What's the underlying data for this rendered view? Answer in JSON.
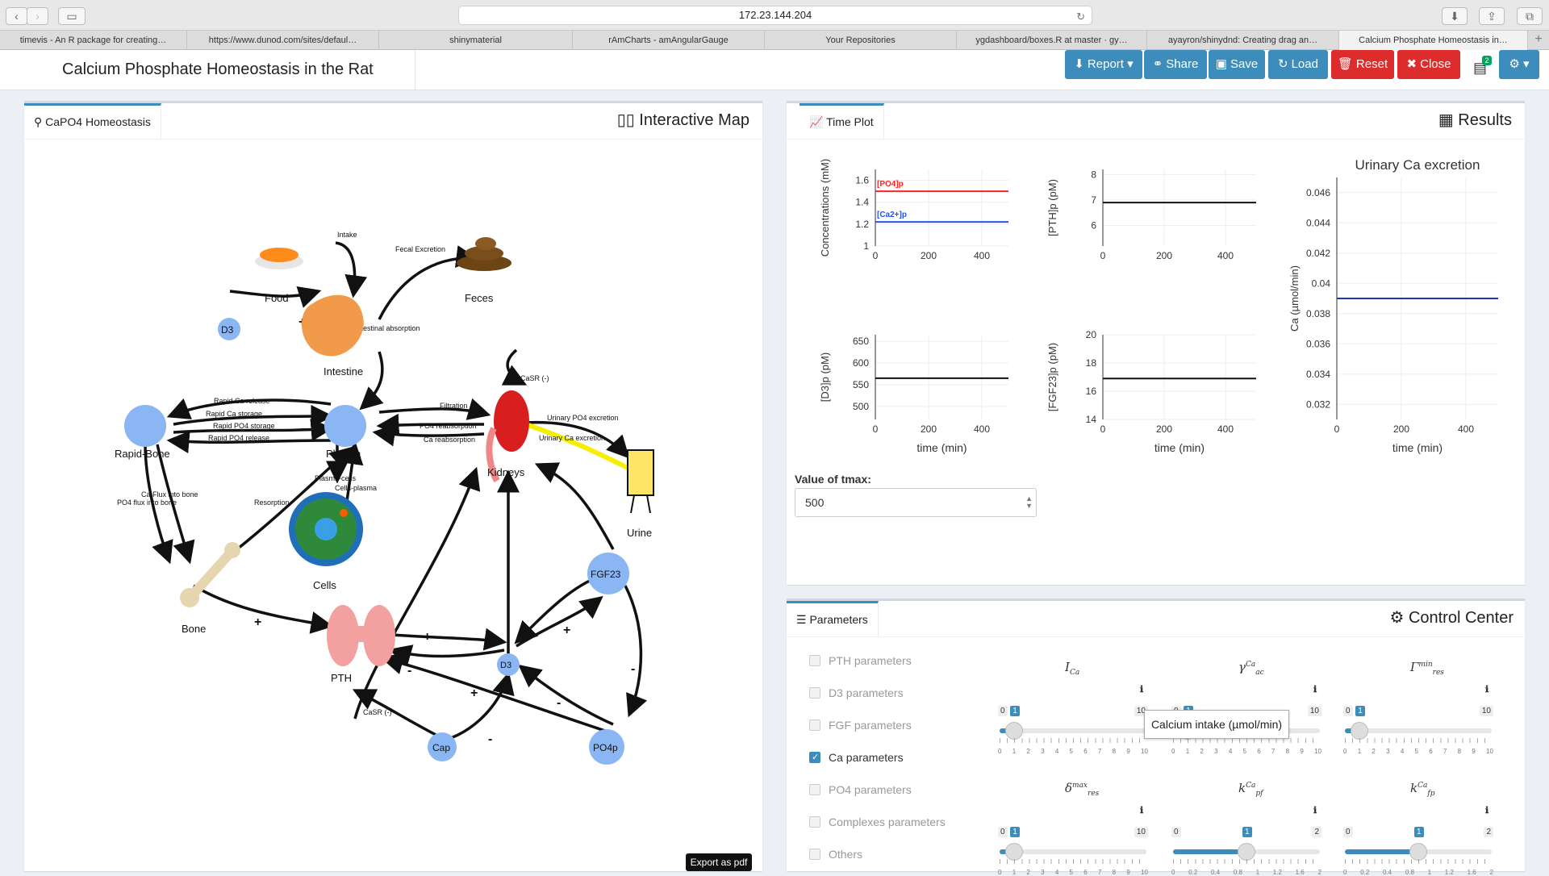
{
  "browser": {
    "url": "172.23.144.204",
    "tabs": [
      "timevis - An R package for creating…",
      "https://www.dunod.com/sites/defaul…",
      "shinymaterial",
      "rAmCharts - amAngularGauge",
      "Your Repositories",
      "ygdashboard/boxes.R at master · gy…",
      "ayayron/shinydnd: Creating drag an…",
      "Calcium Phosphate Homeostasis in…"
    ]
  },
  "header": {
    "title": "Calcium Phosphate Homeostasis in the Rat",
    "buttons": {
      "report": "Report",
      "share": "Share",
      "save": "Save",
      "load": "Load",
      "reset": "Reset",
      "close": "Close"
    },
    "badge": "2"
  },
  "map_panel": {
    "tab": "CaPO4 Homeostasis",
    "title": "Interactive Map",
    "export": "Export as pdf",
    "nodes": {
      "food": "Food",
      "feces": "Feces",
      "d3_top": "D3",
      "intestine": "Intestine",
      "rapid_bone": "Rapid-Bone",
      "plasma": "Plasma",
      "kidneys": "Kidneys",
      "urine": "Urine",
      "cells": "Cells",
      "bone": "Bone",
      "fgf23": "FGF23",
      "pth": "PTH",
      "d3": "D3",
      "cap": "Cap",
      "po4p": "PO4p"
    },
    "edges": {
      "intake": "Intake",
      "fecal": "Fecal Excretion",
      "abs": "Intestinal absorption",
      "rca_rel": "Rapid Ca release",
      "rca_sto": "Rapid Ca storage",
      "rpo4_sto": "Rapid PO4 storage",
      "rpo4_rel": "Rapid PO4 release",
      "filt": "Filtration",
      "po4_reab": "PO4 reabsorption",
      "ca_reab": "Ca reabsorption",
      "u_po4": "Urinary PO4 excretion",
      "u_ca": "Urinary Ca excretion",
      "casr_k": "CaSR (-)",
      "pc": "Plasma-cells",
      "cp": "Cells-plasma",
      "resorp": "Resorption",
      "ca_flux": "Ca Flux into bone",
      "po4_flux": "PO4 flux into bone",
      "casr_pth": "CaSR (-)"
    }
  },
  "results_panel": {
    "tab": "Time Plot",
    "title": "Results",
    "tmax_label": "Value of tmax:",
    "tmax_value": "500"
  },
  "chart_data": [
    {
      "type": "line",
      "ylabel": "Concentrations (mM)",
      "xlim": [
        0,
        500
      ],
      "ylim": [
        1,
        1.7
      ],
      "x_ticks": [
        0,
        200,
        400
      ],
      "y_ticks": [
        1,
        1.2,
        1.4,
        1.6
      ],
      "series": [
        {
          "name": "[PO4]p",
          "x": [
            0,
            500
          ],
          "values": [
            1.5,
            1.5
          ],
          "color": "#ff2222"
        },
        {
          "name": "[Ca2+]p",
          "x": [
            0,
            500
          ],
          "values": [
            1.22,
            1.22
          ],
          "color": "#2255ee"
        }
      ]
    },
    {
      "type": "line",
      "ylabel": "[PTH]p (pM)",
      "xlim": [
        0,
        500
      ],
      "ylim": [
        5.2,
        8.2
      ],
      "x_ticks": [
        0,
        200,
        400
      ],
      "y_ticks": [
        6,
        7,
        8
      ],
      "series": [
        {
          "x": [
            0,
            500
          ],
          "values": [
            6.9,
            6.9
          ],
          "color": "#111111"
        }
      ]
    },
    {
      "type": "line",
      "title": "Urinary Ca excretion",
      "ylabel": "Ca (µmol/min)",
      "xlabel": "time (min)",
      "xlim": [
        0,
        500
      ],
      "ylim": [
        0.031,
        0.047
      ],
      "x_ticks": [
        0,
        200,
        400
      ],
      "y_ticks": [
        0.032,
        0.034,
        0.036,
        0.038,
        0.04,
        0.042,
        0.044,
        0.046
      ],
      "series": [
        {
          "x": [
            0,
            500
          ],
          "values": [
            0.039,
            0.039
          ],
          "color": "#2233bb"
        }
      ]
    },
    {
      "type": "line",
      "ylabel": "[D3]p (pM)",
      "xlabel": "time (min)",
      "xlim": [
        0,
        500
      ],
      "ylim": [
        470,
        665
      ],
      "x_ticks": [
        0,
        200,
        400
      ],
      "y_ticks": [
        500,
        550,
        600,
        650
      ],
      "series": [
        {
          "x": [
            0,
            500
          ],
          "values": [
            565,
            565
          ],
          "color": "#111111"
        }
      ]
    },
    {
      "type": "line",
      "ylabel": "[FGF23]p (pM)",
      "xlabel": "time (min)",
      "xlim": [
        0,
        500
      ],
      "ylim": [
        14,
        20
      ],
      "x_ticks": [
        0,
        200,
        400
      ],
      "y_ticks": [
        14,
        16,
        18,
        20
      ],
      "series": [
        {
          "x": [
            0,
            500
          ],
          "values": [
            16.9,
            16.9
          ],
          "color": "#111111"
        }
      ]
    }
  ],
  "control_panel": {
    "tab": "Parameters",
    "title": "Control Center",
    "checkboxes": [
      {
        "label": "PTH parameters",
        "checked": false
      },
      {
        "label": "D3 parameters",
        "checked": false
      },
      {
        "label": "FGF parameters",
        "checked": false
      },
      {
        "label": "Ca parameters",
        "checked": true
      },
      {
        "label": "PO4 parameters",
        "checked": false
      },
      {
        "label": "Complexes parameters",
        "checked": false
      },
      {
        "label": "Others",
        "checked": false
      }
    ],
    "tooltip": "Calcium intake (µmol/min)",
    "sliders": [
      {
        "symbol": "I",
        "sub": "Ca",
        "sup": "",
        "min": "0",
        "max": "10",
        "value": "1",
        "fraction": 0.1,
        "grid": [
          "0",
          "1",
          "2",
          "3",
          "4",
          "5",
          "6",
          "7",
          "8",
          "9",
          "10"
        ]
      },
      {
        "symbol": "γ",
        "sub": "ac",
        "sup": "Ca",
        "min": "0",
        "max": "10",
        "value": "1",
        "fraction": 0.1,
        "grid": [
          "0",
          "1",
          "2",
          "3",
          "4",
          "5",
          "6",
          "7",
          "8",
          "9",
          "10"
        ]
      },
      {
        "symbol": "Γ",
        "sub": "res",
        "sup": "min",
        "min": "0",
        "max": "10",
        "value": "1",
        "fraction": 0.1,
        "grid": [
          "0",
          "1",
          "2",
          "3",
          "4",
          "5",
          "6",
          "7",
          "8",
          "9",
          "10"
        ]
      },
      {
        "symbol": "δ",
        "sub": "res",
        "sup": "max",
        "min": "0",
        "max": "10",
        "value": "1",
        "fraction": 0.1,
        "grid": [
          "0",
          "1",
          "2",
          "3",
          "4",
          "5",
          "6",
          "7",
          "8",
          "9",
          "10"
        ]
      },
      {
        "symbol": "k",
        "sub": "pf",
        "sup": "Ca",
        "min": "0",
        "max": "2",
        "value": "1",
        "fraction": 0.5,
        "grid": [
          "0",
          "0.2",
          "0.4",
          "0.8",
          "1",
          "1.2",
          "1.6",
          "2"
        ]
      },
      {
        "symbol": "k",
        "sub": "fp",
        "sup": "Ca",
        "min": "0",
        "max": "2",
        "value": "1",
        "fraction": 0.5,
        "grid": [
          "0",
          "0.2",
          "0.4",
          "0.8",
          "1",
          "1.2",
          "1.6",
          "2"
        ]
      }
    ]
  }
}
